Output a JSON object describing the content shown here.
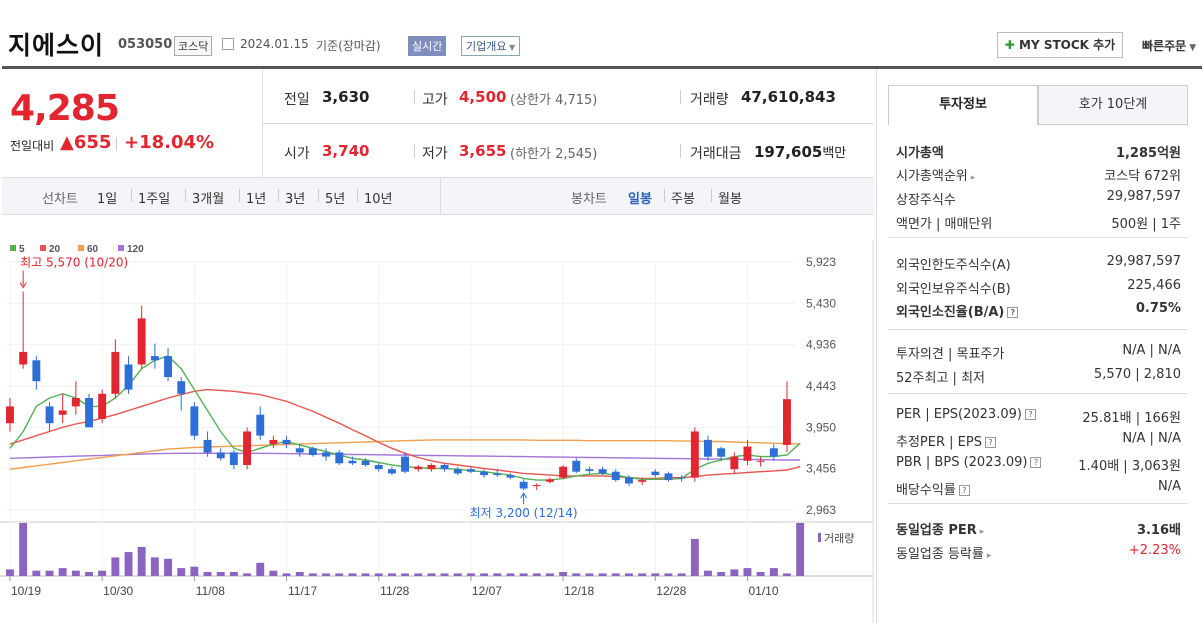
{
  "stock": {
    "name": "지에스이",
    "code": "053050",
    "market": "코스닥",
    "date": "2024.01.15",
    "basis": "기준(장마감)",
    "realtime_btn": "실시간",
    "company_btn": "기업개요",
    "mystock_btn": "MY STOCK 추가",
    "fast_order": "빠른주문",
    "price": "4,285",
    "change_label": "전일대비",
    "change_value": "655",
    "change_percent": "+18.04%",
    "prev_label": "전일",
    "prev": "3,630",
    "high_label": "고가",
    "high": "4,500",
    "upper_limit": "(상한가 4,715)",
    "volume_label": "거래량",
    "volume": "47,610,843",
    "open_label": "시가",
    "open": "3,740",
    "low_label": "저가",
    "low": "3,655",
    "lower_limit": "(하한가 2,545)",
    "amount_label": "거래대금",
    "amount": "197,605",
    "amount_unit": "백만"
  },
  "periods": {
    "line_label": "선차트",
    "line_items": [
      "1일",
      "1주일",
      "3개월",
      "1년",
      "3년",
      "5년",
      "10년"
    ],
    "candle_label": "봉차트",
    "candle_items": [
      "일봉",
      "주봉",
      "월봉"
    ],
    "active_candle": "일봉"
  },
  "colors": {
    "up": "#e2252e",
    "down": "#2d6fd6",
    "ma5": "#55b255",
    "ma20": "#e8564f",
    "ma60": "#f0a04b",
    "ma120": "#a673d6",
    "volume": "#8b63c1"
  },
  "chart_data": {
    "type": "candlestick",
    "legend": [
      "5",
      "20",
      "60",
      "120"
    ],
    "high_annotation": "최고 5,570 (10/20)",
    "low_annotation": "최저 3,200 (12/14)",
    "volume_label": "거래량",
    "yticks": [
      "5,923",
      "5,430",
      "4,936",
      "4,443",
      "3,950",
      "3,456",
      "2,963"
    ],
    "ylim": [
      2963,
      5923
    ],
    "xticks": [
      "10/19",
      "10/30",
      "11/08",
      "11/17",
      "11/28",
      "12/07",
      "12/18",
      "12/28",
      "01/10"
    ],
    "xtick_index": [
      0,
      7,
      14,
      21,
      28,
      35,
      42,
      49,
      56
    ],
    "candles": [
      {
        "o": 4000,
        "h": 4300,
        "l": 3900,
        "c": 4200
      },
      {
        "o": 4700,
        "h": 5570,
        "l": 4650,
        "c": 4850
      },
      {
        "o": 4750,
        "h": 4800,
        "l": 4400,
        "c": 4500
      },
      {
        "o": 4200,
        "h": 4250,
        "l": 3900,
        "c": 4000
      },
      {
        "o": 4100,
        "h": 4350,
        "l": 4000,
        "c": 4150
      },
      {
        "o": 4200,
        "h": 4500,
        "l": 4100,
        "c": 4300
      },
      {
        "o": 4300,
        "h": 4350,
        "l": 3950,
        "c": 3950
      },
      {
        "o": 4050,
        "h": 4400,
        "l": 4000,
        "c": 4350
      },
      {
        "o": 4350,
        "h": 5000,
        "l": 4300,
        "c": 4850
      },
      {
        "o": 4700,
        "h": 4800,
        "l": 4350,
        "c": 4400
      },
      {
        "o": 4700,
        "h": 5400,
        "l": 4650,
        "c": 5250
      },
      {
        "o": 4800,
        "h": 4950,
        "l": 4650,
        "c": 4750
      },
      {
        "o": 4800,
        "h": 4900,
        "l": 4500,
        "c": 4550
      },
      {
        "o": 4500,
        "h": 4550,
        "l": 4150,
        "c": 4350
      },
      {
        "o": 4200,
        "h": 4250,
        "l": 3800,
        "c": 3850
      },
      {
        "o": 3800,
        "h": 3900,
        "l": 3600,
        "c": 3650
      },
      {
        "o": 3650,
        "h": 3700,
        "l": 3550,
        "c": 3580
      },
      {
        "o": 3650,
        "h": 3680,
        "l": 3450,
        "c": 3500
      },
      {
        "o": 3500,
        "h": 3950,
        "l": 3450,
        "c": 3900
      },
      {
        "o": 4100,
        "h": 4200,
        "l": 3800,
        "c": 3850
      },
      {
        "o": 3750,
        "h": 3850,
        "l": 3700,
        "c": 3800
      },
      {
        "o": 3800,
        "h": 3850,
        "l": 3700,
        "c": 3750
      },
      {
        "o": 3700,
        "h": 3750,
        "l": 3600,
        "c": 3650
      },
      {
        "o": 3700,
        "h": 3720,
        "l": 3600,
        "c": 3620
      },
      {
        "o": 3650,
        "h": 3700,
        "l": 3550,
        "c": 3600
      },
      {
        "o": 3650,
        "h": 3680,
        "l": 3500,
        "c": 3520
      },
      {
        "o": 3550,
        "h": 3600,
        "l": 3500,
        "c": 3520
      },
      {
        "o": 3550,
        "h": 3580,
        "l": 3480,
        "c": 3500
      },
      {
        "o": 3500,
        "h": 3520,
        "l": 3420,
        "c": 3450
      },
      {
        "o": 3450,
        "h": 3480,
        "l": 3380,
        "c": 3400
      },
      {
        "o": 3600,
        "h": 3650,
        "l": 3400,
        "c": 3420
      },
      {
        "o": 3450,
        "h": 3500,
        "l": 3420,
        "c": 3480
      },
      {
        "o": 3450,
        "h": 3520,
        "l": 3420,
        "c": 3500
      },
      {
        "o": 3500,
        "h": 3520,
        "l": 3420,
        "c": 3450
      },
      {
        "o": 3450,
        "h": 3480,
        "l": 3380,
        "c": 3400
      },
      {
        "o": 3450,
        "h": 3480,
        "l": 3400,
        "c": 3420
      },
      {
        "o": 3420,
        "h": 3450,
        "l": 3350,
        "c": 3380
      },
      {
        "o": 3400,
        "h": 3450,
        "l": 3360,
        "c": 3380
      },
      {
        "o": 3380,
        "h": 3400,
        "l": 3330,
        "c": 3350
      },
      {
        "o": 3300,
        "h": 3330,
        "l": 3200,
        "c": 3220
      },
      {
        "o": 3250,
        "h": 3280,
        "l": 3200,
        "c": 3260
      },
      {
        "o": 3300,
        "h": 3350,
        "l": 3280,
        "c": 3330
      },
      {
        "o": 3350,
        "h": 3500,
        "l": 3330,
        "c": 3480
      },
      {
        "o": 3550,
        "h": 3580,
        "l": 3400,
        "c": 3420
      },
      {
        "o": 3450,
        "h": 3480,
        "l": 3400,
        "c": 3430
      },
      {
        "o": 3450,
        "h": 3480,
        "l": 3380,
        "c": 3400
      },
      {
        "o": 3420,
        "h": 3450,
        "l": 3300,
        "c": 3320
      },
      {
        "o": 3350,
        "h": 3380,
        "l": 3250,
        "c": 3280
      },
      {
        "o": 3300,
        "h": 3350,
        "l": 3260,
        "c": 3320
      },
      {
        "o": 3420,
        "h": 3450,
        "l": 3350,
        "c": 3380
      },
      {
        "o": 3400,
        "h": 3420,
        "l": 3300,
        "c": 3320
      },
      {
        "o": 3350,
        "h": 3380,
        "l": 3300,
        "c": 3340
      },
      {
        "o": 3350,
        "h": 3950,
        "l": 3300,
        "c": 3900
      },
      {
        "o": 3800,
        "h": 3850,
        "l": 3550,
        "c": 3600
      },
      {
        "o": 3700,
        "h": 3720,
        "l": 3550,
        "c": 3600
      },
      {
        "o": 3450,
        "h": 3650,
        "l": 3400,
        "c": 3600
      },
      {
        "o": 3550,
        "h": 3800,
        "l": 3500,
        "c": 3720
      },
      {
        "o": 3550,
        "h": 3600,
        "l": 3480,
        "c": 3550
      },
      {
        "o": 3700,
        "h": 3750,
        "l": 3550,
        "c": 3600
      },
      {
        "o": 3740,
        "h": 4500,
        "l": 3655,
        "c": 4285
      }
    ],
    "volumes": [
      5,
      40,
      4,
      4,
      6,
      4,
      3,
      4,
      14,
      18,
      22,
      14,
      13,
      6,
      7,
      3,
      3,
      3,
      2,
      10,
      4,
      2,
      3,
      2,
      2,
      2,
      2,
      2,
      2,
      2,
      2,
      2,
      2,
      2,
      2,
      2,
      2,
      2,
      2,
      2,
      2,
      2,
      3,
      2,
      2,
      2,
      2,
      2,
      2,
      2,
      2,
      2,
      28,
      4,
      3,
      5,
      6,
      3,
      6,
      2,
      40
    ],
    "ma5": [
      3700,
      3900,
      4200,
      4300,
      4350,
      4300,
      4200,
      4200,
      4300,
      4450,
      4650,
      4750,
      4800,
      4650,
      4400,
      4150,
      3900,
      3700,
      3650,
      3700,
      3750,
      3780,
      3740,
      3700,
      3660,
      3620,
      3580,
      3560,
      3530,
      3500,
      3480,
      3470,
      3460,
      3460,
      3450,
      3430,
      3420,
      3400,
      3380,
      3340,
      3320,
      3320,
      3340,
      3370,
      3390,
      3400,
      3380,
      3350,
      3330,
      3330,
      3330,
      3340,
      3450,
      3520,
      3560,
      3600,
      3620,
      3600,
      3600,
      3620,
      3760
    ],
    "ma20": [
      3750,
      3800,
      3850,
      3900,
      3950,
      3990,
      4020,
      4060,
      4100,
      4150,
      4200,
      4250,
      4300,
      4340,
      4380,
      4400,
      4390,
      4380,
      4360,
      4340,
      4300,
      4260,
      4200,
      4140,
      4070,
      4000,
      3920,
      3850,
      3770,
      3700,
      3640,
      3590,
      3550,
      3520,
      3500,
      3480,
      3460,
      3440,
      3420,
      3400,
      3390,
      3380,
      3370,
      3370,
      3370,
      3370,
      3360,
      3350,
      3340,
      3340,
      3350,
      3350,
      3360,
      3380,
      3390,
      3400,
      3410,
      3420,
      3430,
      3440,
      3480
    ],
    "ma60": [
      3450,
      3470,
      3490,
      3510,
      3530,
      3550,
      3570,
      3590,
      3610,
      3630,
      3650,
      3670,
      3690,
      3700,
      3710,
      3715,
      3720,
      3725,
      3730,
      3735,
      3740,
      3745,
      3750,
      3755,
      3760,
      3765,
      3770,
      3775,
      3780,
      3785,
      3790,
      3795,
      3800,
      3800,
      3800,
      3800,
      3800,
      3800,
      3800,
      3800,
      3795,
      3795,
      3795,
      3795,
      3790,
      3790,
      3790,
      3790,
      3790,
      3790,
      3790,
      3785,
      3785,
      3780,
      3780,
      3775,
      3770,
      3765,
      3760,
      3755,
      3750
    ],
    "ma120": [
      3580,
      3585,
      3590,
      3595,
      3600,
      3605,
      3610,
      3615,
      3620,
      3625,
      3630,
      3635,
      3638,
      3640,
      3640,
      3640,
      3640,
      3640,
      3640,
      3640,
      3638,
      3636,
      3634,
      3632,
      3630,
      3628,
      3626,
      3624,
      3622,
      3620,
      3618,
      3616,
      3614,
      3612,
      3610,
      3608,
      3606,
      3604,
      3602,
      3600,
      3598,
      3596,
      3594,
      3592,
      3590,
      3588,
      3586,
      3584,
      3582,
      3580,
      3578,
      3576,
      3574,
      3572,
      3570,
      3568,
      3566,
      3564,
      3562,
      3560,
      3560
    ]
  },
  "panel": {
    "tab_invest": "투자정보",
    "tab_orderbook": "호가 10단계",
    "rows": [
      {
        "label": "시가총액",
        "value": "1,285억원",
        "bold": true
      },
      {
        "label": "시가총액순위",
        "value": "코스닥 672위",
        "chev": true
      },
      {
        "label": "상장주식수",
        "value": "29,987,597"
      },
      {
        "label": "액면가 | 매매단위",
        "value": "500원 | 1주"
      },
      {
        "label": "외국인한도주식수(A)",
        "value": "29,987,597"
      },
      {
        "label": "외국인보유주식수(B)",
        "value": "225,466"
      },
      {
        "label": "외국인소진율(B/A)",
        "value": "0.75%",
        "bold": true,
        "help": true
      },
      {
        "label": "투자의견 | 목표주가",
        "value": "N/A | N/A"
      },
      {
        "label": "52주최고 | 최저",
        "value": "5,570 | 2,810"
      },
      {
        "label": "PER | EPS(2023.09)",
        "value": "25.81배 | 166원",
        "help": true
      },
      {
        "label": "추정PER | EPS",
        "value": "N/A | N/A",
        "help": true
      },
      {
        "label": "PBR | BPS (2023.09)",
        "value": "1.40배 | 3,063원",
        "help": true
      },
      {
        "label": "배당수익률",
        "value": "N/A",
        "help": true
      },
      {
        "label": "동일업종 PER",
        "value": "3.16배",
        "bold": true,
        "chev": true
      },
      {
        "label": "동일업종 등락률",
        "value": "+2.23%",
        "chev": true,
        "red": true
      }
    ]
  }
}
